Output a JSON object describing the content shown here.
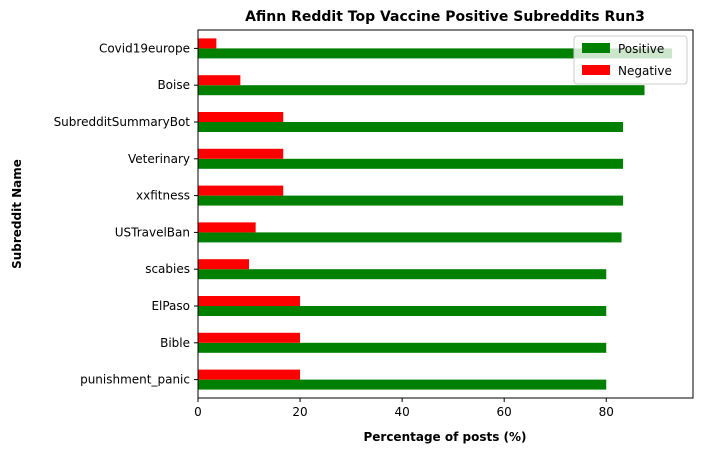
{
  "chart_data": {
    "type": "bar",
    "orientation": "horizontal",
    "title": "Afinn Reddit Top Vaccine Positive Subreddits Run3",
    "xlabel": "Percentage of posts (%)",
    "ylabel": "Subreddit Name",
    "xlim": [
      0,
      97
    ],
    "xticks": [
      0,
      20,
      40,
      60,
      80
    ],
    "grid": false,
    "legend_position": "top-right",
    "categories": [
      "Covid19europe",
      "Boise",
      "SubredditSummaryBot",
      "Veterinary",
      "xxfitness",
      "USTravelBan",
      "scabies",
      "ElPaso",
      "Bible",
      "punishment_panic"
    ],
    "series": [
      {
        "name": "Positive",
        "color": "#008000",
        "values": [
          92.9,
          87.5,
          83.3,
          83.3,
          83.3,
          83.0,
          80.0,
          80.0,
          80.0,
          80.0
        ]
      },
      {
        "name": "Negative",
        "color": "#ff0000",
        "values": [
          3.6,
          8.3,
          16.7,
          16.7,
          16.7,
          11.3,
          10.0,
          20.0,
          20.0,
          20.0
        ]
      }
    ]
  }
}
